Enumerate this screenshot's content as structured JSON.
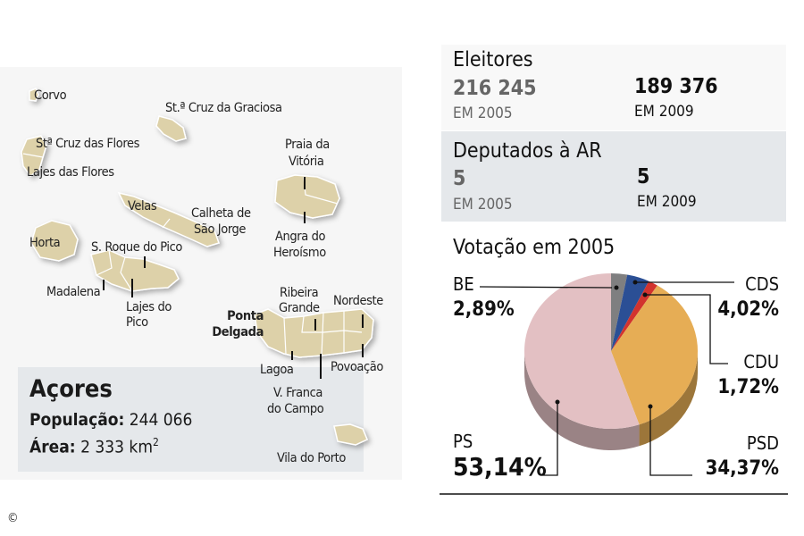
{
  "map": {
    "labels": {
      "corvo": "Corvo",
      "graciosa": "St.ª Cruz da Graciosa",
      "flores_n": "Stª Cruz das Flores",
      "flores_s": "Lajes das Flores",
      "velas": "Velas",
      "calheta1": "Calheta de",
      "calheta2": "São Jorge",
      "praia1": "Praia da",
      "praia2": "Vitória",
      "angra1": "Angra do",
      "angra2": "Heroísmo",
      "horta": "Horta",
      "sroque": "S. Roque do Pico",
      "madalena": "Madalena",
      "lajespico1": "Lajes do",
      "lajespico2": "Pico",
      "ribeira1": "Ribeira",
      "ribeira2": "Grande",
      "nordeste": "Nordeste",
      "ponta1": "Ponta",
      "ponta2": "Delgada",
      "lagoa": "Lagoa",
      "povoacao": "Povoação",
      "vfranca1": "V. Franca",
      "vfranca2": "do Campo",
      "viladoporto": "Vila do Porto"
    },
    "island_color": "#ddd1a9"
  },
  "info": {
    "title": "Açores",
    "pop_label": "População:",
    "pop_value": "244 066",
    "area_label": "Área:",
    "area_value": "2 333 km",
    "area_sup": "2"
  },
  "eleitores": {
    "title": "Eleitores",
    "v2005": "216 245",
    "l2005": "EM 2005",
    "v2009": "189 376",
    "l2009": "EM 2009"
  },
  "deputados": {
    "title": "Deputados à AR",
    "v2005": "5",
    "l2005": "EM 2005",
    "v2009": "5",
    "l2009": "EM 2009"
  },
  "copyright": "©",
  "chart_data": {
    "type": "pie",
    "title": "Votação em 2005",
    "slices": [
      {
        "name": "BE",
        "value": 2.89,
        "label": "2,89%",
        "color": "#7f7f80"
      },
      {
        "name": "CDS",
        "value": 4.02,
        "label": "4,02%",
        "color": "#2b4f95"
      },
      {
        "name": "CDU",
        "value": 1.72,
        "label": "1,72%",
        "color": "#d2332e"
      },
      {
        "name": "PSD",
        "value": 34.37,
        "label": "34,37%",
        "color": "#e6ad55"
      },
      {
        "name": "PS",
        "value": 53.14,
        "label": "53,14%",
        "color": "#e3c0c3"
      }
    ]
  }
}
